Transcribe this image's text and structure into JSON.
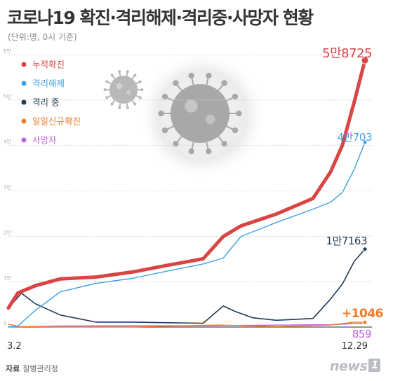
{
  "title": "코로나19 확진·격리해제·격리중·사망자 현황",
  "subtitle": "(단위:명, 0시 기준)",
  "source_label": "자료",
  "source_name": "질병관리청",
  "brand": "news",
  "brand_mark": "1",
  "colors": {
    "cumulative": "#d94545",
    "released": "#3ea0e8",
    "isolating": "#1f3b57",
    "daily": "#f07b28",
    "deaths": "#c062d8",
    "grid": "#cfcfcf",
    "axis": "#555555"
  },
  "chart_data": {
    "type": "line",
    "title": "코로나19 확진·격리해제·격리중·사망자 현황",
    "unit": "명",
    "x_start_label": "3.2",
    "x_end_label": "12.29",
    "xlim": [
      "2020-03-02",
      "2020-12-29"
    ],
    "ylim": [
      0,
      60000
    ],
    "grid": true,
    "legend_position": "top-left",
    "y_ticks": [
      {
        "value": 0,
        "label": "0"
      },
      {
        "value": 10000,
        "label": "1만"
      },
      {
        "value": 20000,
        "label": "2만"
      },
      {
        "value": 30000,
        "label": "3만"
      },
      {
        "value": 40000,
        "label": "4만"
      },
      {
        "value": 50000,
        "label": "5만"
      },
      {
        "value": 60000,
        "label": "6만"
      }
    ],
    "series": [
      {
        "key": "cumulative",
        "name": "누적확진",
        "end_label": "5만8725",
        "points": [
          [
            "2020-03-02",
            4212
          ],
          [
            "2020-03-10",
            7513
          ],
          [
            "2020-03-25",
            9137
          ],
          [
            "2020-04-15",
            10613
          ],
          [
            "2020-05-15",
            11018
          ],
          [
            "2020-06-15",
            12121
          ],
          [
            "2020-07-15",
            13612
          ],
          [
            "2020-08-14",
            15039
          ],
          [
            "2020-08-31",
            19947
          ],
          [
            "2020-09-15",
            22285
          ],
          [
            "2020-10-15",
            24889
          ],
          [
            "2020-11-15",
            28338
          ],
          [
            "2020-11-30",
            34201
          ],
          [
            "2020-12-10",
            40098
          ],
          [
            "2020-12-20",
            49665
          ],
          [
            "2020-12-29",
            58725
          ]
        ]
      },
      {
        "key": "released",
        "name": "격리해제",
        "end_label": "4만703",
        "points": [
          [
            "2020-03-02",
            30
          ],
          [
            "2020-03-10",
            247
          ],
          [
            "2020-03-25",
            3730
          ],
          [
            "2020-04-15",
            7757
          ],
          [
            "2020-05-15",
            9632
          ],
          [
            "2020-06-15",
            10718
          ],
          [
            "2020-07-15",
            12348
          ],
          [
            "2020-08-14",
            13901
          ],
          [
            "2020-08-31",
            15198
          ],
          [
            "2020-09-15",
            19970
          ],
          [
            "2020-10-15",
            23030
          ],
          [
            "2020-11-15",
            25973
          ],
          [
            "2020-11-30",
            27520
          ],
          [
            "2020-12-10",
            29680
          ],
          [
            "2020-12-20",
            34800
          ],
          [
            "2020-12-29",
            40703
          ]
        ]
      },
      {
        "key": "isolating",
        "name": "격리 중",
        "end_label": "1만7163",
        "points": [
          [
            "2020-03-02",
            4154
          ],
          [
            "2020-03-13",
            7470
          ],
          [
            "2020-03-25",
            5100
          ],
          [
            "2020-04-15",
            2650
          ],
          [
            "2020-05-15",
            1100
          ],
          [
            "2020-06-15",
            1100
          ],
          [
            "2020-07-15",
            950
          ],
          [
            "2020-08-14",
            845
          ],
          [
            "2020-08-31",
            4640
          ],
          [
            "2020-09-10",
            3450
          ],
          [
            "2020-09-25",
            2050
          ],
          [
            "2020-10-15",
            1500
          ],
          [
            "2020-11-15",
            1900
          ],
          [
            "2020-11-30",
            6200
          ],
          [
            "2020-12-10",
            9500
          ],
          [
            "2020-12-20",
            14500
          ],
          [
            "2020-12-29",
            17163
          ]
        ]
      },
      {
        "key": "daily",
        "name": "일일신규확진",
        "end_label": "+1046",
        "points": [
          [
            "2020-03-02",
            686
          ],
          [
            "2020-03-10",
            131
          ],
          [
            "2020-04-15",
            27
          ],
          [
            "2020-06-15",
            37
          ],
          [
            "2020-08-27",
            441
          ],
          [
            "2020-10-15",
            110
          ],
          [
            "2020-11-30",
            451
          ],
          [
            "2020-12-20",
            1097
          ],
          [
            "2020-12-29",
            1046
          ]
        ]
      },
      {
        "key": "deaths",
        "name": "사망자",
        "end_label": "859",
        "points": [
          [
            "2020-03-02",
            22
          ],
          [
            "2020-04-15",
            225
          ],
          [
            "2020-06-15",
            277
          ],
          [
            "2020-08-14",
            305
          ],
          [
            "2020-10-15",
            432
          ],
          [
            "2020-11-30",
            526
          ],
          [
            "2020-12-29",
            859
          ]
        ]
      }
    ]
  }
}
